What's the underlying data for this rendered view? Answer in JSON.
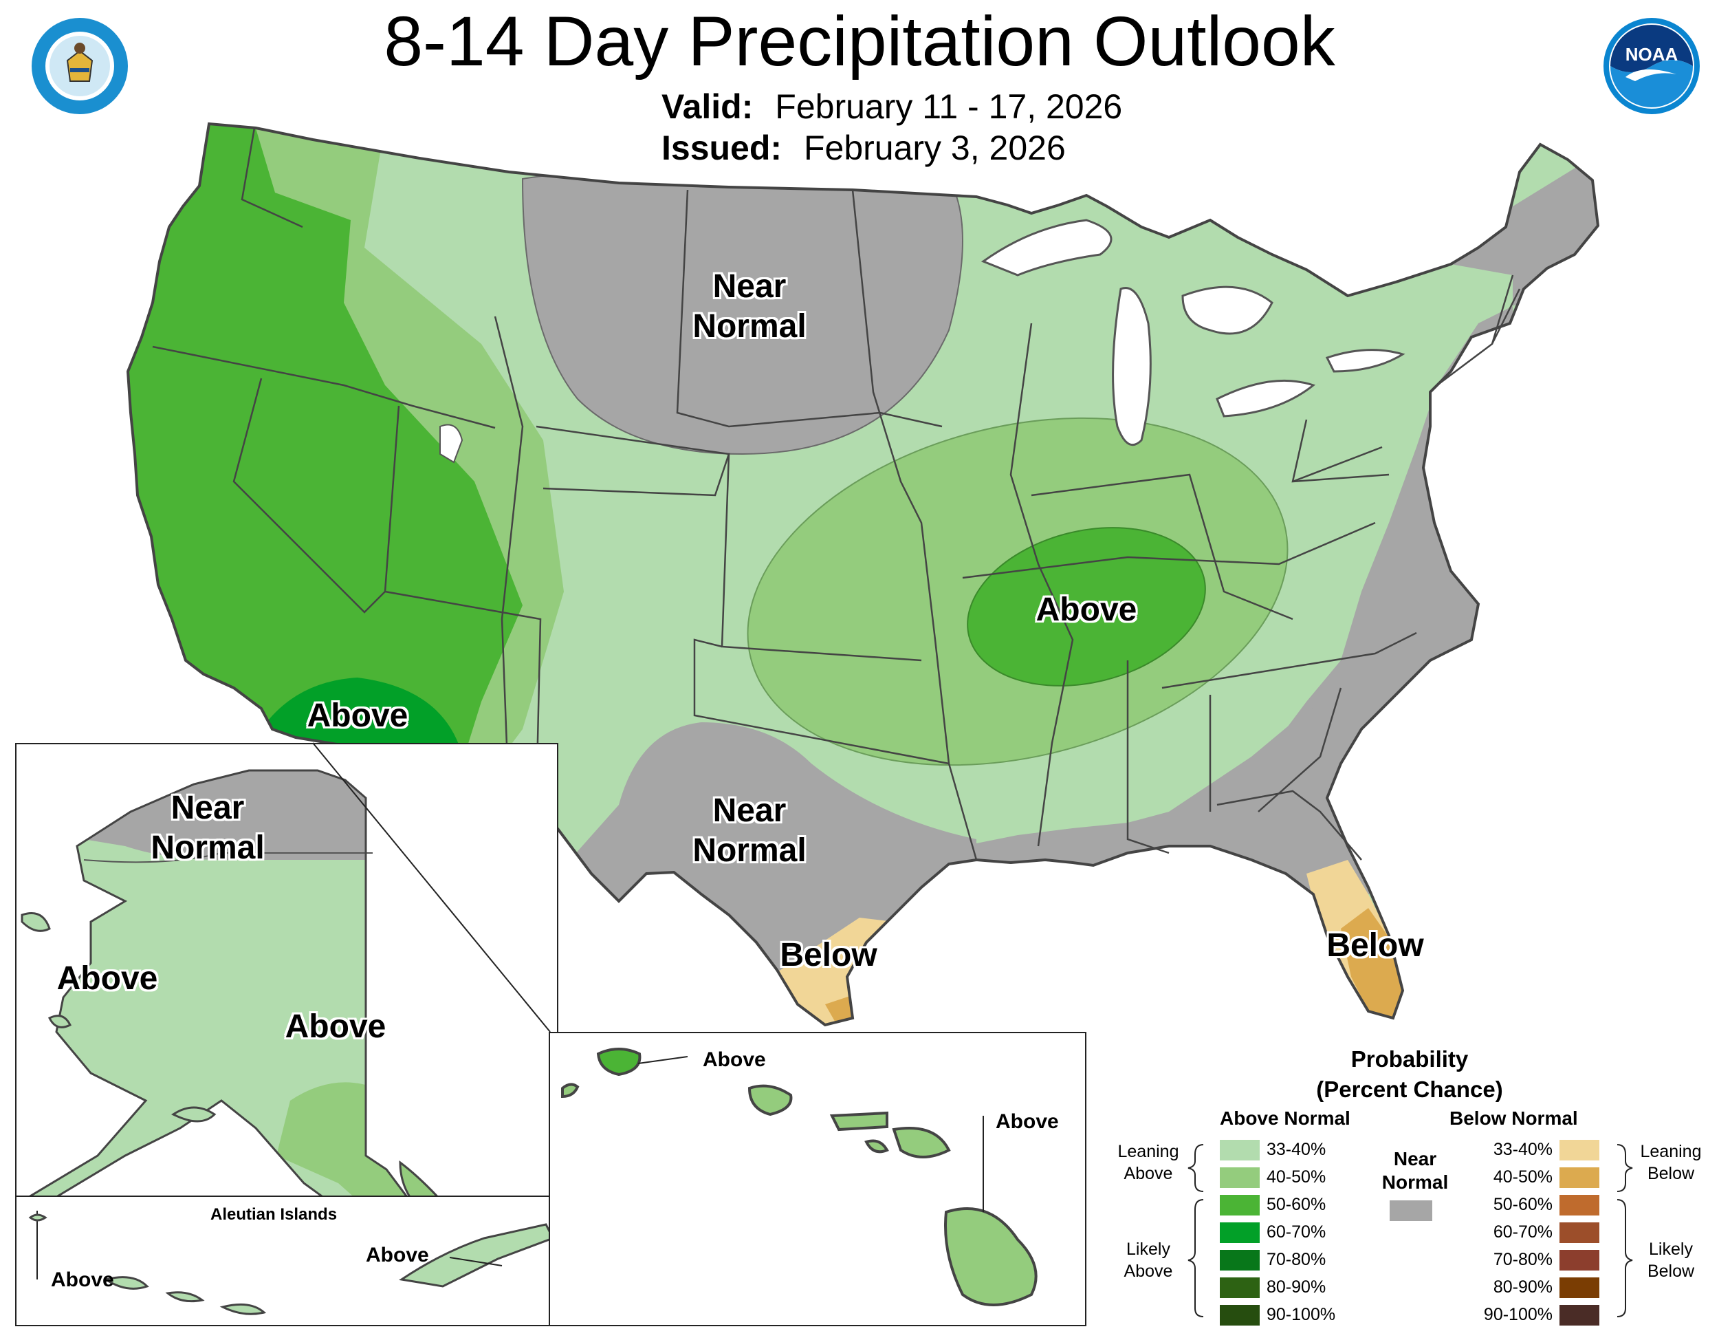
{
  "header": {
    "title": "8-14 Day Precipitation Outlook",
    "valid_label": "Valid:",
    "valid_value": "February 11 - 17, 2026",
    "issued_label": "Issued:",
    "issued_value": "February 3, 2026"
  },
  "logos": {
    "commerce_top": "DEPARTMENT OF COMMERCE",
    "commerce_bottom": "UNITED STATES OF AMERICA",
    "noaa": "NOAA"
  },
  "map_labels": {
    "north_near_normal": "Near\nNormal",
    "southwest_above": "Above",
    "ohio_valley_above": "Above",
    "texas_near_normal": "Near\nNormal",
    "texas_below": "Below",
    "florida_below": "Below"
  },
  "alaska": {
    "north_near_normal": "Near\nNormal",
    "west_above": "Above",
    "south_above": "Above",
    "aleutian_title": "Aleutian Islands",
    "aleutian_west_above": "Above",
    "aleutian_east_above": "Above"
  },
  "hawaii": {
    "kauai_above": "Above",
    "big_island_above": "Above"
  },
  "legend": {
    "title_line1": "Probability",
    "title_line2": "(Percent Chance)",
    "above_header": "Above Normal",
    "below_header": "Below Normal",
    "near_normal_line1": "Near",
    "near_normal_line2": "Normal",
    "leaning_above_1": "Leaning",
    "leaning_above_2": "Above",
    "likely_above_1": "Likely",
    "likely_above_2": "Above",
    "leaning_below_1": "Leaning",
    "leaning_below_2": "Below",
    "likely_below_1": "Likely",
    "likely_below_2": "Below",
    "above_bins": [
      "33-40%",
      "40-50%",
      "50-60%",
      "60-70%",
      "70-80%",
      "80-90%",
      "90-100%"
    ],
    "below_bins": [
      "33-40%",
      "40-50%",
      "50-60%",
      "60-70%",
      "70-80%",
      "80-90%",
      "90-100%"
    ],
    "above_colors": [
      "#b2dcae",
      "#94cc7d",
      "#4bb435",
      "#02a028",
      "#08771a",
      "#2d6213",
      "#264d0f"
    ],
    "below_colors": [
      "#f1d697",
      "#dcaa4f",
      "#bf6b2d",
      "#9c4e2a",
      "#8c3e2d",
      "#7a3d03",
      "#4a2c26"
    ],
    "near_normal_color": "#a6a6a6"
  }
}
